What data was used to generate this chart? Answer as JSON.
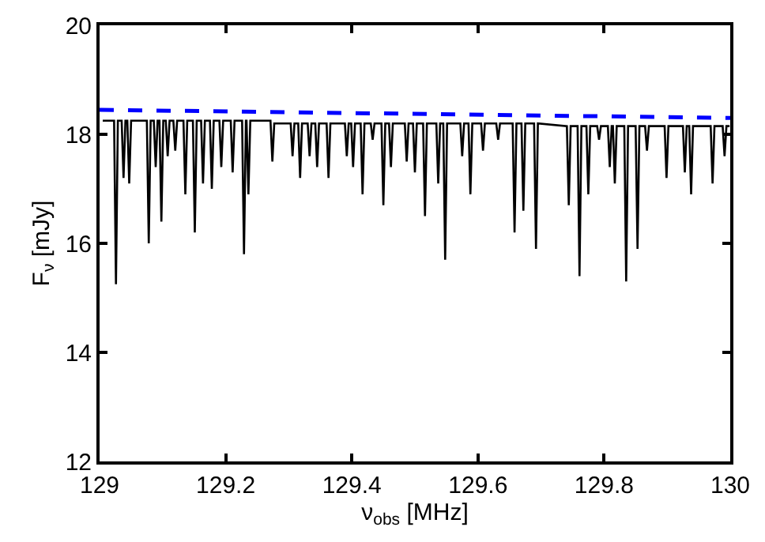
{
  "chart_data": {
    "type": "line",
    "xlabel": "ν$_{obs}$ [MHz]",
    "ylabel": "F$_{ν}$ [mJy]",
    "xlim": [
      129,
      130
    ],
    "xticks": [
      129,
      129.2,
      129.4,
      129.6,
      129.8,
      130
    ],
    "ylim": [
      12,
      20
    ],
    "yticks": [
      12,
      14,
      16,
      18,
      20
    ],
    "marker": "none",
    "series": [
      {
        "color": "#000000",
        "line_style": "solid",
        "x": [
          129.005,
          129.023,
          129.026,
          129.029,
          129.035,
          129.038,
          129.041,
          129.044,
          129.047,
          129.05,
          129.075,
          129.078,
          129.081,
          129.086,
          129.089,
          129.092,
          129.095,
          129.098,
          129.101,
          129.105,
          129.108,
          129.111,
          129.117,
          129.12,
          129.123,
          129.133,
          129.136,
          129.139,
          129.148,
          129.151,
          129.154,
          129.161,
          129.164,
          129.167,
          129.175,
          129.178,
          129.181,
          129.19,
          129.193,
          129.196,
          129.208,
          129.211,
          129.214,
          129.226,
          129.229,
          129.232,
          129.233,
          129.236,
          129.239,
          129.271,
          129.274,
          129.277,
          129.303,
          129.306,
          129.309,
          129.315,
          129.318,
          129.321,
          129.33,
          129.333,
          129.336,
          129.342,
          129.345,
          129.348,
          129.36,
          129.363,
          129.366,
          129.389,
          129.392,
          129.395,
          129.399,
          129.402,
          129.405,
          129.414,
          129.417,
          129.42,
          129.43,
          129.433,
          129.436,
          129.447,
          129.45,
          129.453,
          129.459,
          129.462,
          129.465,
          129.484,
          129.487,
          129.49,
          129.497,
          129.5,
          129.503,
          129.513,
          129.516,
          129.519,
          129.534,
          129.537,
          129.54,
          129.545,
          129.548,
          129.551,
          129.572,
          129.575,
          129.578,
          129.585,
          129.588,
          129.591,
          129.605,
          129.608,
          129.611,
          129.629,
          129.632,
          129.635,
          129.655,
          129.658,
          129.661,
          129.669,
          129.672,
          129.675,
          129.689,
          129.692,
          129.695,
          129.741,
          129.744,
          129.747,
          129.758,
          129.761,
          129.764,
          129.772,
          129.775,
          129.778,
          129.789,
          129.792,
          129.795,
          129.806,
          129.809,
          129.812,
          129.814,
          129.817,
          129.82,
          129.832,
          129.835,
          129.838,
          129.85,
          129.853,
          129.856,
          129.865,
          129.868,
          129.871,
          129.896,
          129.899,
          129.902,
          129.925,
          129.928,
          129.931,
          129.935,
          129.938,
          129.941,
          129.969,
          129.972,
          129.975,
          129.988,
          129.991,
          129.994,
          129.999
        ],
        "values": [
          18.25,
          18.25,
          15.25,
          18.25,
          18.25,
          17.2,
          18.25,
          18.25,
          17.1,
          18.25,
          18.25,
          16.0,
          18.25,
          18.25,
          17.4,
          18.25,
          18.25,
          16.4,
          18.25,
          18.25,
          17.6,
          18.25,
          18.25,
          17.7,
          18.25,
          18.25,
          16.9,
          18.25,
          18.25,
          16.2,
          18.25,
          18.25,
          17.1,
          18.25,
          18.25,
          17.0,
          18.25,
          18.25,
          17.4,
          18.25,
          18.25,
          17.3,
          18.25,
          18.25,
          15.8,
          18.25,
          18.25,
          16.9,
          18.25,
          18.25,
          17.5,
          18.2,
          18.2,
          17.6,
          18.2,
          18.2,
          17.2,
          18.2,
          18.2,
          17.6,
          18.2,
          18.2,
          17.4,
          18.2,
          18.2,
          17.2,
          18.2,
          18.2,
          17.6,
          18.2,
          18.2,
          17.4,
          18.2,
          18.2,
          16.9,
          18.2,
          18.2,
          17.9,
          18.2,
          18.2,
          16.7,
          18.2,
          18.2,
          17.4,
          18.2,
          18.2,
          17.5,
          18.2,
          18.2,
          17.3,
          18.2,
          18.2,
          16.5,
          18.2,
          18.2,
          17.1,
          18.2,
          18.2,
          15.7,
          18.2,
          18.2,
          17.6,
          18.2,
          18.2,
          16.9,
          18.2,
          18.2,
          17.7,
          18.2,
          18.2,
          17.9,
          18.2,
          18.2,
          16.2,
          18.2,
          18.2,
          16.6,
          18.2,
          18.2,
          15.9,
          18.2,
          18.15,
          16.7,
          18.15,
          18.15,
          15.4,
          18.15,
          18.15,
          16.9,
          18.15,
          18.15,
          17.9,
          18.15,
          18.15,
          17.4,
          18.15,
          18.15,
          17.1,
          18.15,
          18.15,
          15.3,
          18.15,
          18.15,
          15.9,
          18.15,
          18.15,
          17.7,
          18.15,
          18.15,
          17.2,
          18.15,
          18.15,
          17.3,
          18.15,
          18.15,
          16.9,
          18.15,
          18.15,
          17.1,
          18.15,
          18.15,
          17.6,
          18.15,
          18.15
        ]
      },
      {
        "color": "#0000ff",
        "line_style": "dashed",
        "x": [
          129,
          130
        ],
        "values": [
          18.45,
          18.3
        ]
      }
    ]
  }
}
